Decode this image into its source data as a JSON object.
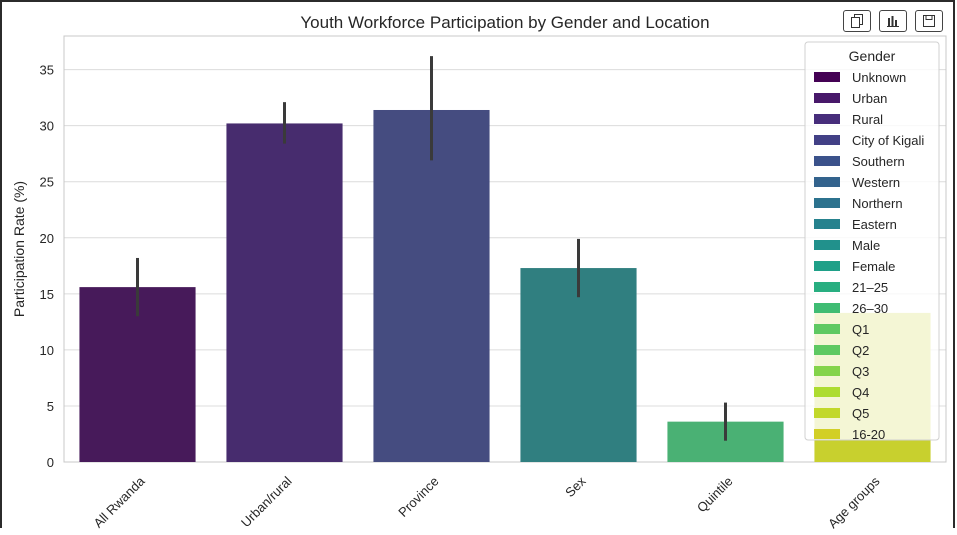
{
  "toolbar": {
    "copy_icon": "copy-icon",
    "chart_icon": "bar-chart-icon",
    "save_icon": "save-icon"
  },
  "chart_data": {
    "type": "bar",
    "title": "Youth Workforce Participation by Gender and Location",
    "xlabel": "",
    "ylabel": "Participation Rate (%)",
    "ylim": [
      0,
      38
    ],
    "yticks": [
      0,
      5,
      10,
      15,
      20,
      25,
      30,
      35
    ],
    "grid": true,
    "categories": [
      "All Rwanda",
      "Urban/rural",
      "Province",
      "Sex",
      "Quintile",
      "Age groups"
    ],
    "values": [
      15.6,
      30.2,
      31.4,
      17.3,
      3.6,
      13.3
    ],
    "error_low": [
      13.0,
      28.4,
      26.9,
      14.7,
      1.9,
      null
    ],
    "error_high": [
      18.2,
      32.1,
      36.2,
      19.9,
      5.3,
      null
    ],
    "bar_colors": [
      "#471a5a",
      "#472c6e",
      "#454c80",
      "#307f80",
      "#4ab174",
      "#c8d02e"
    ],
    "legend": {
      "title": "Gender",
      "position": "top-right",
      "entries": [
        {
          "label": "Unknown",
          "color": "#440154"
        },
        {
          "label": "Urban",
          "color": "#48186a"
        },
        {
          "label": "Rural",
          "color": "#472d7b"
        },
        {
          "label": "City of Kigali",
          "color": "#424086"
        },
        {
          "label": "Southern",
          "color": "#3b528b"
        },
        {
          "label": "Western",
          "color": "#33638d"
        },
        {
          "label": "Northern",
          "color": "#2c728e"
        },
        {
          "label": "Eastern",
          "color": "#26828e"
        },
        {
          "label": "Male",
          "color": "#21918c"
        },
        {
          "label": "Female",
          "color": "#1fa088"
        },
        {
          "label": "21–25",
          "color": "#28ae80"
        },
        {
          "label": "26–30",
          "color": "#3fbc73"
        },
        {
          "label": "Q1",
          "color": "#5ec962"
        },
        {
          "label": "Q2",
          "color": "#5ec962"
        },
        {
          "label": "Q3",
          "color": "#84d44b"
        },
        {
          "label": "Q4",
          "color": "#addc30"
        },
        {
          "label": "Q5",
          "color": "#c2d82a"
        },
        {
          "label": "16-20",
          "color": "#d2cf26"
        }
      ]
    }
  }
}
